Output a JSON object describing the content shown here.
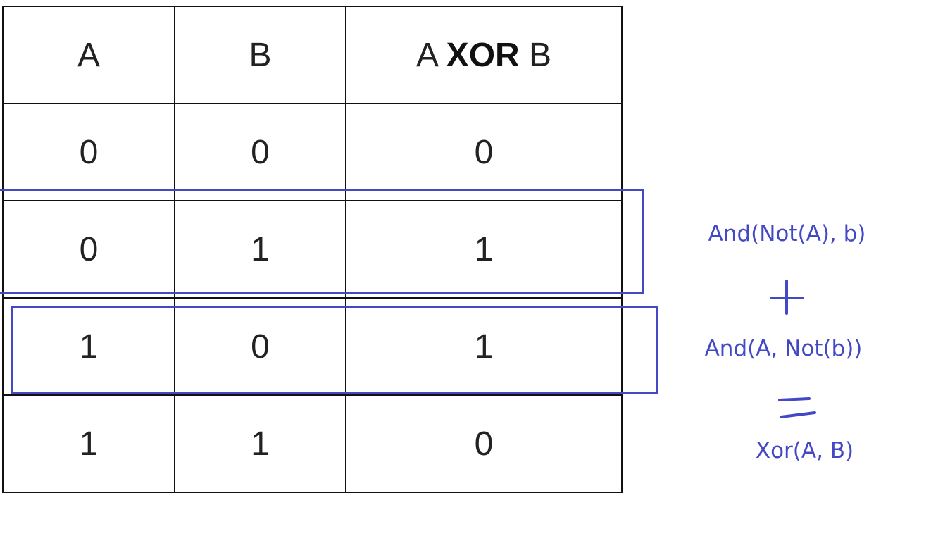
{
  "table": {
    "headers": {
      "a": "A",
      "b": "B",
      "xor_left": "A",
      "xor_op": "XOR",
      "xor_right": "B"
    },
    "rows": [
      {
        "a": "0",
        "b": "0",
        "xor": "0"
      },
      {
        "a": "0",
        "b": "1",
        "xor": "1"
      },
      {
        "a": "1",
        "b": "0",
        "xor": "1"
      },
      {
        "a": "1",
        "b": "1",
        "xor": "0"
      }
    ]
  },
  "annotations": {
    "term1": "And(Not(A), b)",
    "term2": "And(A, Not(b))",
    "result": "Xor(A, B)"
  },
  "colors": {
    "annotation": "#4348c4",
    "grid": "#111111",
    "text": "#222222"
  }
}
